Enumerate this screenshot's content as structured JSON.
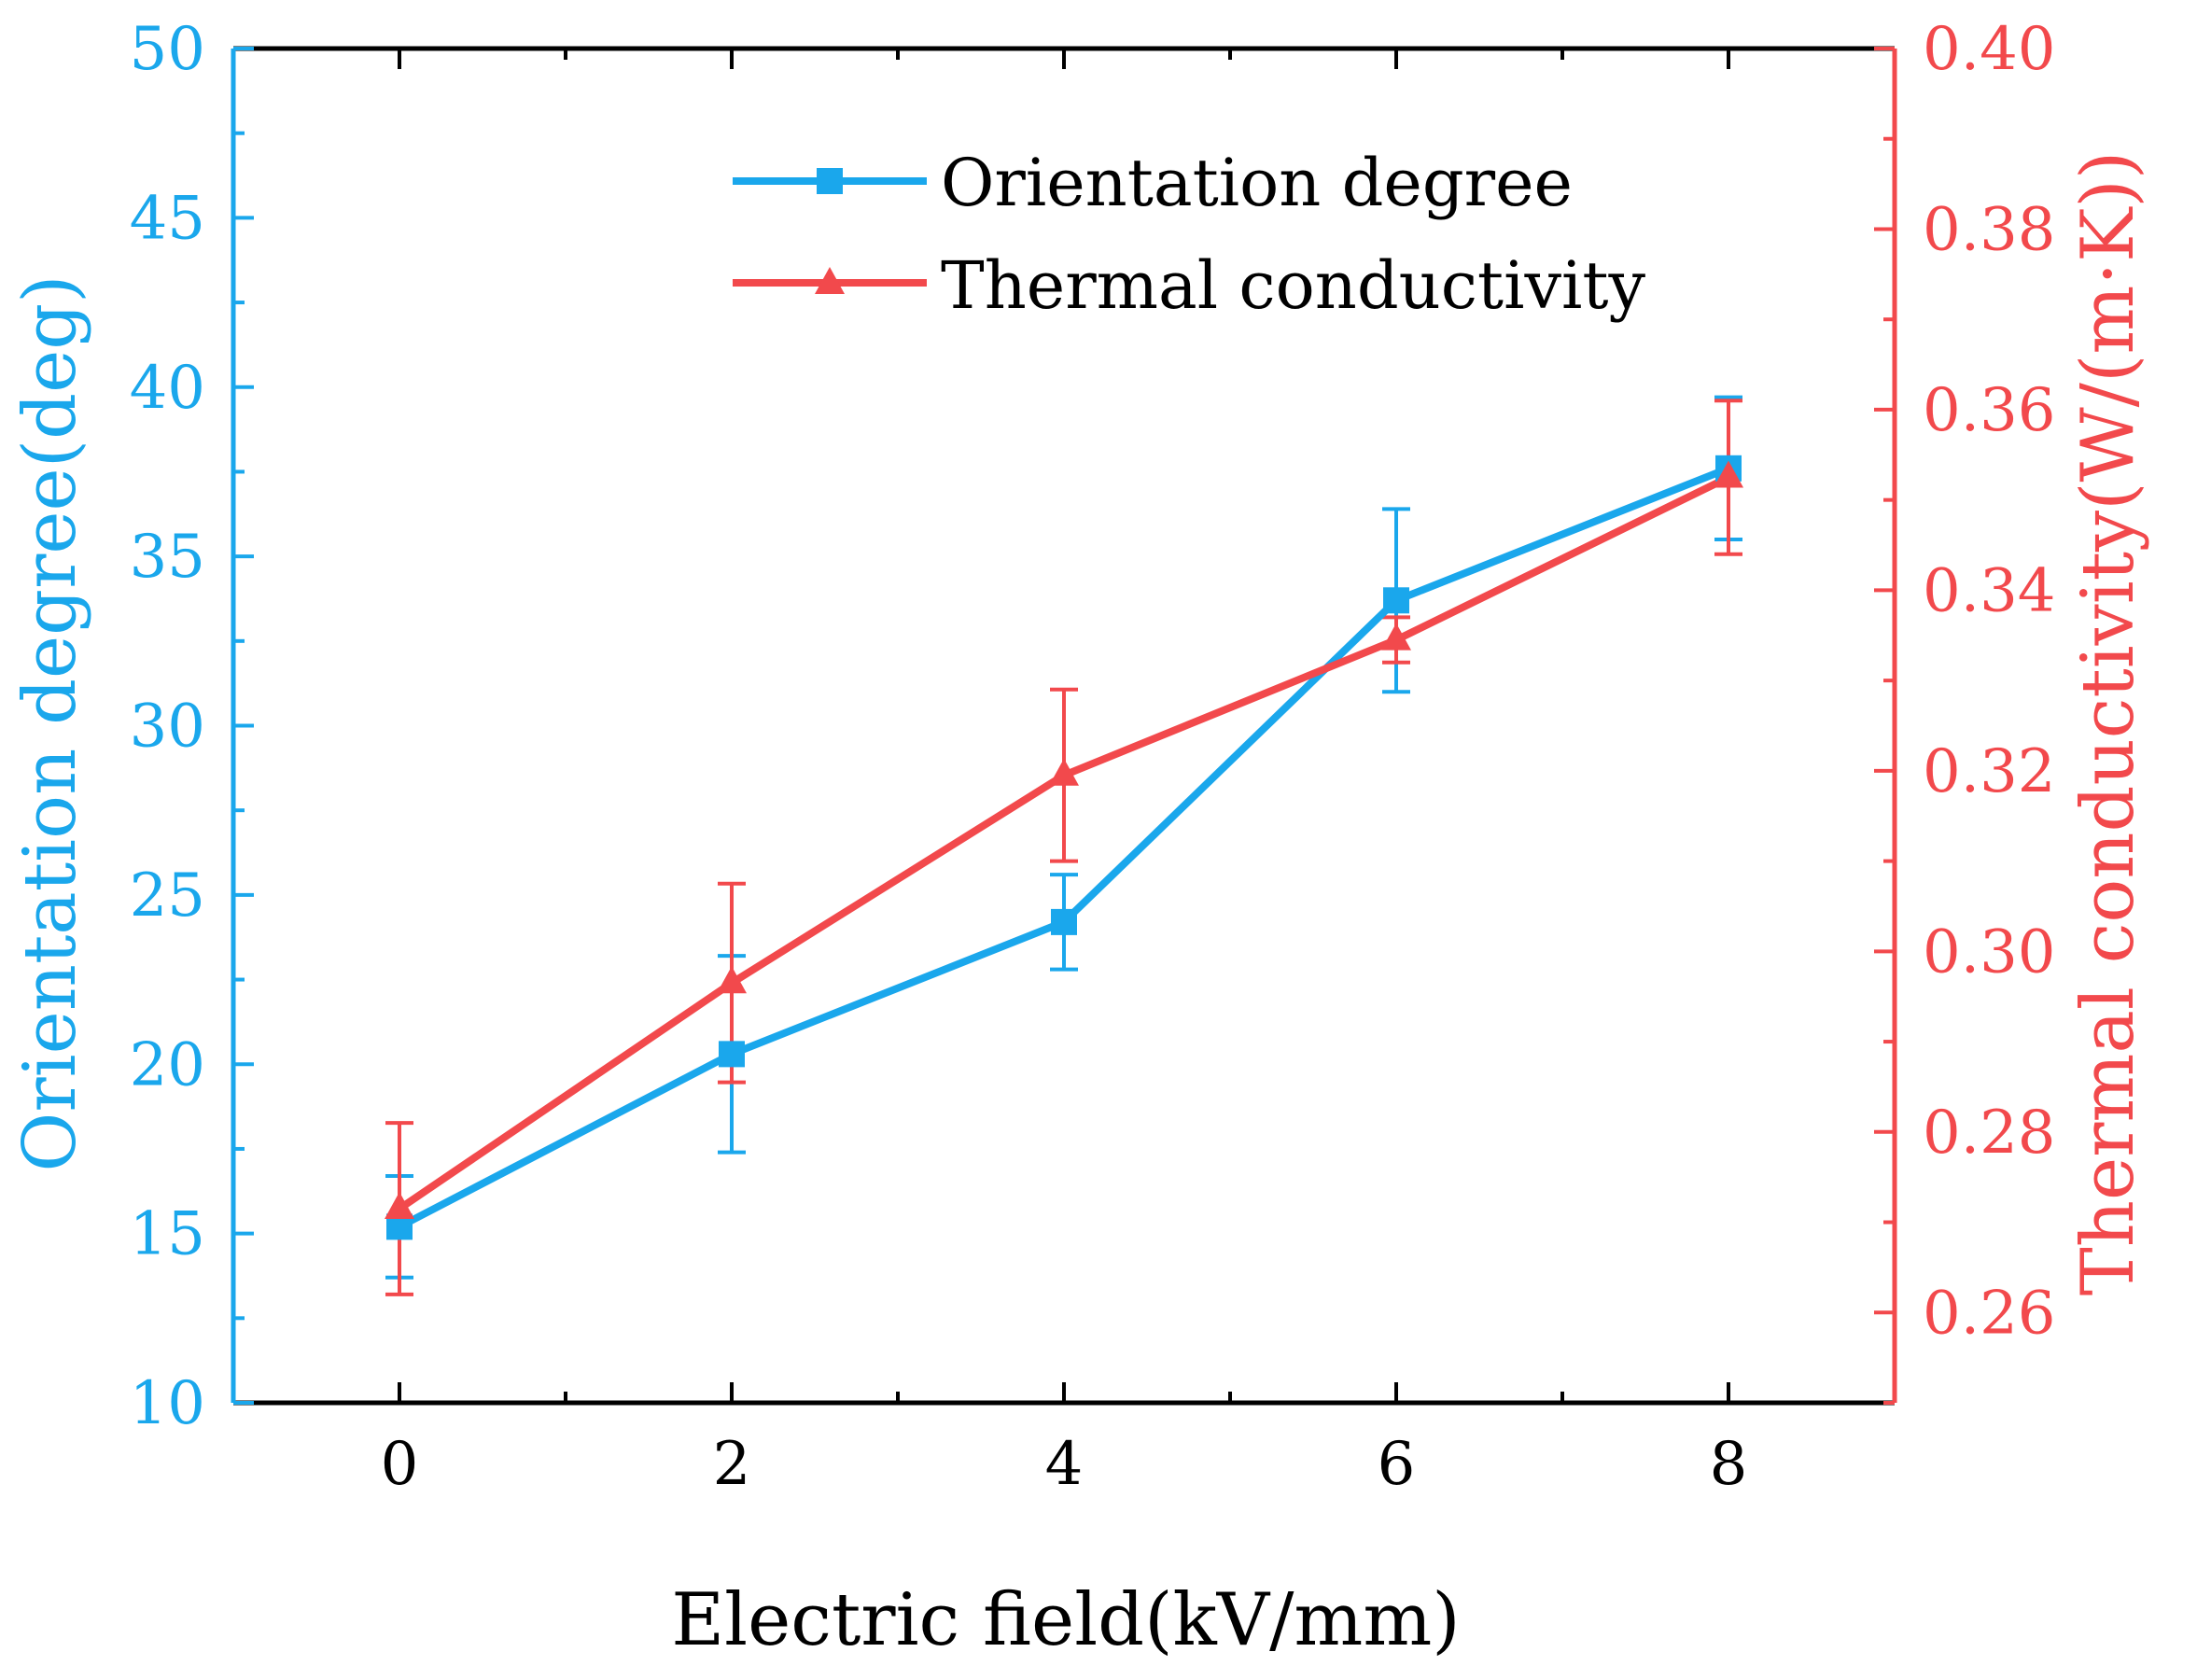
{
  "colors": {
    "orientation": "#1aa7ec",
    "thermal": "#f2494c",
    "axis": "#000000"
  },
  "chart_data": {
    "type": "line",
    "title": "",
    "xlabel": "Electric field(kV/mm)",
    "ylabel_left": "Orientation degree(deg)",
    "ylabel_right": "Thermal conductivity(W/(m·K))",
    "xlim": [
      -1,
      9
    ],
    "x_ticks": [
      0,
      2,
      4,
      6,
      8
    ],
    "x_tick_labels": [
      "0",
      "2",
      "4",
      "6",
      "8"
    ],
    "ylim_left": [
      10,
      50
    ],
    "y_left_ticks": [
      10,
      15,
      20,
      25,
      30,
      35,
      40,
      45,
      50
    ],
    "y_left_tick_labels": [
      "10",
      "15",
      "20",
      "25",
      "30",
      "35",
      "40",
      "45",
      "50"
    ],
    "ylim_right": [
      0.25,
      0.4
    ],
    "y_right_ticks": [
      0.26,
      0.28,
      0.3,
      0.32,
      0.34,
      0.36,
      0.38,
      0.4
    ],
    "y_right_tick_labels": [
      "0.26",
      "0.28",
      "0.30",
      "0.32",
      "0.34",
      "0.36",
      "0.38",
      "0.40"
    ],
    "legend_position": "top-center",
    "series": [
      {
        "name": "Orientation degree",
        "axis": "left",
        "marker": "square",
        "x": [
          0,
          2,
          4,
          6,
          8
        ],
        "y": [
          15.2,
          20.3,
          24.2,
          33.7,
          37.6
        ],
        "err": [
          1.5,
          2.9,
          1.4,
          2.7,
          2.1
        ]
      },
      {
        "name": "Thermal conductivity",
        "axis": "right",
        "marker": "triangle",
        "x": [
          0,
          2,
          4,
          6,
          8
        ],
        "y": [
          0.2715,
          0.2965,
          0.3195,
          0.3345,
          0.3525
        ],
        "err": [
          0.0095,
          0.011,
          0.0095,
          0.0025,
          0.0085
        ]
      }
    ]
  }
}
